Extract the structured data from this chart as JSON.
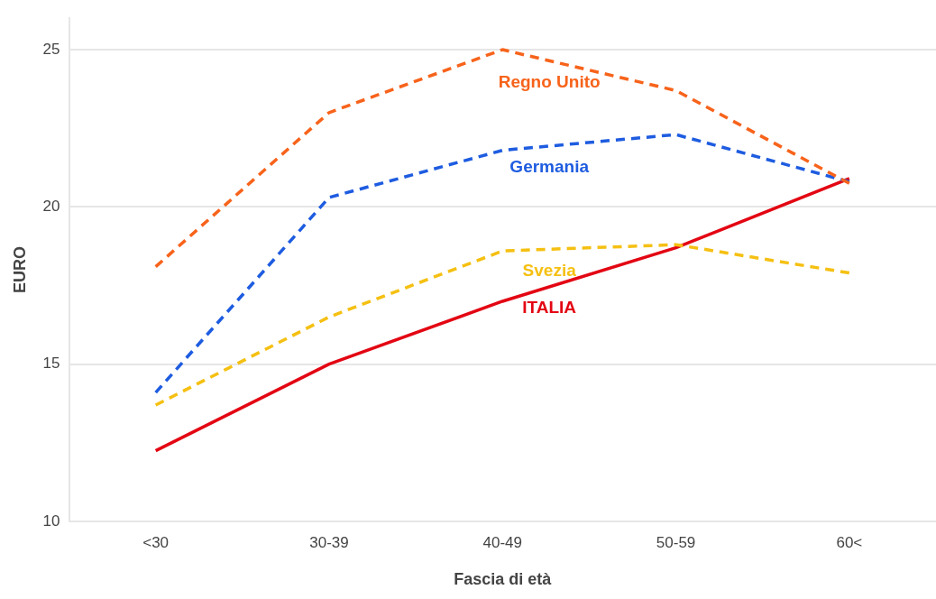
{
  "chart_data": {
    "type": "line",
    "xlabel": "Fascia di età",
    "ylabel": "EURO",
    "categories": [
      "<30",
      "30-39",
      "40-49",
      "50-59",
      "60<"
    ],
    "ylim": [
      10,
      26
    ],
    "yticks": [
      10,
      15,
      20,
      25
    ],
    "grid": "y",
    "legend": false,
    "marker": "none",
    "series": [
      {
        "name": "Regno Unito",
        "color": "#f7631b",
        "line_style": "dashed",
        "values": [
          18.1,
          23.0,
          25.0,
          23.7,
          20.75
        ]
      },
      {
        "name": "Germania",
        "color": "#1e5ce0",
        "line_style": "dashed",
        "values": [
          14.1,
          20.3,
          21.8,
          22.3,
          20.8
        ]
      },
      {
        "name": "Svezia",
        "color": "#f5c012",
        "line_style": "dashed",
        "values": [
          13.7,
          16.5,
          18.6,
          18.8,
          17.9
        ]
      },
      {
        "name": "ITALIA",
        "color": "#e30613",
        "line_style": "solid",
        "values": [
          12.25,
          15.0,
          17.0,
          18.7,
          20.9
        ]
      }
    ]
  }
}
